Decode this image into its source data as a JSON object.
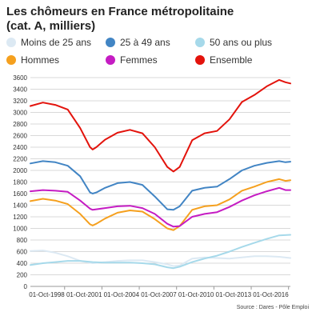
{
  "title_line1": "Les chômeurs en France métropolitaine",
  "title_line2": "(cat. A, milliers)",
  "source": "Source : Dares - Pôle Emploi",
  "chart_data": {
    "type": "line",
    "title": "Les chômeurs en France métropolitaine (cat. A, milliers)",
    "xlabel": "",
    "ylabel": "",
    "xlim": [
      1996.0,
      2016.9
    ],
    "ylim": [
      0,
      3600
    ],
    "y_ticks": [
      0,
      200,
      400,
      600,
      800,
      1000,
      1200,
      1400,
      1600,
      1800,
      2000,
      2200,
      2400,
      2600,
      2800,
      3000,
      3200,
      3400,
      3600
    ],
    "x_ticks": [
      1998.75,
      2001.75,
      2004.75,
      2007.75,
      2010.75,
      2013.75,
      2016.75
    ],
    "x_tick_labels": [
      "01-Oct-1998",
      "01-Oct-2001",
      "01-Oct-2004",
      "01-Oct-2007",
      "01-Oct-2010",
      "01-Oct-2013",
      "01-Oct-2016"
    ],
    "grid": true,
    "legend_position": "top",
    "series": [
      {
        "name": "Moins de 25 ans",
        "color": "#dce9f3",
        "x": [
          1996.0,
          1997.0,
          1998.0,
          1999.0,
          2000.0,
          2001.0,
          2002.0,
          2003.0,
          2004.0,
          2005.0,
          2006.0,
          2007.0,
          2007.5,
          2008.0,
          2009.0,
          2010.0,
          2011.0,
          2012.0,
          2013.0,
          2014.0,
          2015.0,
          2016.0,
          2016.9
        ],
        "y": [
          610,
          620,
          580,
          520,
          440,
          400,
          420,
          440,
          450,
          450,
          420,
          380,
          350,
          360,
          480,
          500,
          490,
          480,
          500,
          520,
          520,
          510,
          490
        ]
      },
      {
        "name": "25 à 49 ans",
        "color": "#4285c4",
        "x": [
          1996.0,
          1997.0,
          1998.0,
          1999.0,
          2000.0,
          2000.8,
          2001.0,
          2001.3,
          2002.0,
          2003.0,
          2004.0,
          2005.0,
          2006.0,
          2007.0,
          2007.5,
          2008.0,
          2009.0,
          2010.0,
          2011.0,
          2012.0,
          2013.0,
          2014.0,
          2015.0,
          2016.0,
          2016.5,
          2016.9
        ],
        "y": [
          2120,
          2160,
          2140,
          2080,
          1900,
          1620,
          1600,
          1620,
          1700,
          1780,
          1800,
          1750,
          1550,
          1330,
          1320,
          1380,
          1650,
          1700,
          1720,
          1850,
          2000,
          2080,
          2130,
          2160,
          2140,
          2150
        ]
      },
      {
        "name": "50 ans ou plus",
        "color": "#a6d9ea",
        "x": [
          1996.0,
          1997.0,
          1998.0,
          1999.0,
          2000.0,
          2001.0,
          2002.0,
          2003.0,
          2004.0,
          2005.0,
          2006.0,
          2007.0,
          2007.5,
          2008.0,
          2009.0,
          2010.0,
          2011.0,
          2012.0,
          2013.0,
          2014.0,
          2015.0,
          2016.0,
          2016.9
        ],
        "y": [
          370,
          400,
          420,
          440,
          440,
          420,
          410,
          410,
          410,
          400,
          380,
          330,
          315,
          340,
          420,
          480,
          530,
          600,
          680,
          750,
          820,
          880,
          890
        ]
      },
      {
        "name": "Hommes",
        "color": "#f5a01e",
        "x": [
          1996.0,
          1997.0,
          1998.0,
          1999.0,
          2000.0,
          2000.8,
          2001.0,
          2001.3,
          2002.0,
          2003.0,
          2004.0,
          2005.0,
          2006.0,
          2007.0,
          2007.5,
          2008.0,
          2009.0,
          2010.0,
          2011.0,
          2012.0,
          2013.0,
          2014.0,
          2015.0,
          2016.0,
          2016.5,
          2016.9
        ],
        "y": [
          1470,
          1510,
          1480,
          1420,
          1250,
          1070,
          1050,
          1080,
          1170,
          1270,
          1310,
          1290,
          1160,
          1000,
          970,
          1040,
          1320,
          1380,
          1400,
          1500,
          1650,
          1720,
          1800,
          1850,
          1820,
          1830
        ]
      },
      {
        "name": "Femmes",
        "color": "#c51cc3",
        "x": [
          1996.0,
          1997.0,
          1998.0,
          1999.0,
          2000.0,
          2000.8,
          2001.0,
          2001.3,
          2002.0,
          2003.0,
          2004.0,
          2005.0,
          2006.0,
          2007.0,
          2007.5,
          2008.0,
          2009.0,
          2010.0,
          2011.0,
          2012.0,
          2013.0,
          2014.0,
          2015.0,
          2016.0,
          2016.5,
          2016.9
        ],
        "y": [
          1640,
          1660,
          1650,
          1630,
          1480,
          1340,
          1320,
          1330,
          1350,
          1380,
          1390,
          1350,
          1250,
          1080,
          1030,
          1040,
          1200,
          1250,
          1280,
          1370,
          1480,
          1570,
          1640,
          1700,
          1660,
          1660
        ]
      },
      {
        "name": "Ensemble",
        "color": "#e3130c",
        "x": [
          1996.0,
          1997.0,
          1998.0,
          1999.0,
          2000.0,
          2000.8,
          2001.0,
          2001.3,
          2002.0,
          2003.0,
          2004.0,
          2005.0,
          2006.0,
          2007.0,
          2007.5,
          2008.0,
          2009.0,
          2010.0,
          2011.0,
          2012.0,
          2013.0,
          2014.0,
          2015.0,
          2016.0,
          2016.5,
          2016.9
        ],
        "y": [
          3110,
          3170,
          3130,
          3050,
          2730,
          2400,
          2360,
          2400,
          2530,
          2650,
          2700,
          2640,
          2400,
          2060,
          1980,
          2060,
          2520,
          2640,
          2680,
          2880,
          3180,
          3300,
          3450,
          3560,
          3520,
          3500
        ]
      }
    ]
  }
}
